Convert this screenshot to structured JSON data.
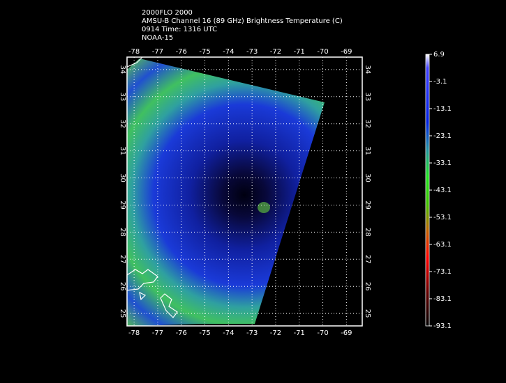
{
  "title_lines": [
    "2000FLO 2000",
    "AMSU-B Channel 16 (89 GHz) Brightness Temperature (C)",
    "0914 Time: 1316 UTC",
    "NOAA-15"
  ],
  "map": {
    "lon_ticks": [
      -78,
      -77,
      -76,
      -75,
      -74,
      -73,
      -72,
      -71,
      -70,
      -69
    ],
    "lonlim": [
      -78.3,
      -68.33
    ],
    "lat_ticks": [
      25,
      26,
      27,
      28,
      29,
      30,
      31,
      32,
      33,
      34
    ],
    "latlim": [
      24.54,
      34.46
    ]
  },
  "colorbar": {
    "ticks": [
      6.9,
      -3.1,
      -13.1,
      -23.1,
      -33.1,
      -43.1,
      -53.1,
      -63.1,
      -73.1,
      -83.1,
      -93.1
    ],
    "lim": [
      -93.1,
      6.9
    ]
  }
}
